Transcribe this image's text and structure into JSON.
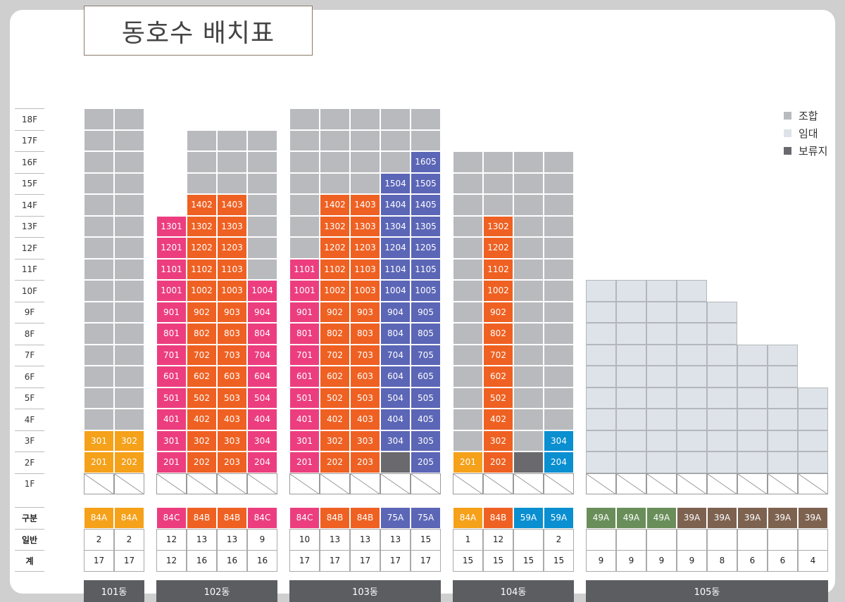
{
  "title": "동호수 배치표",
  "floors": [
    "18F",
    "17F",
    "16F",
    "15F",
    "14F",
    "13F",
    "12F",
    "11F",
    "10F",
    "9F",
    "8F",
    "7F",
    "6F",
    "5F",
    "4F",
    "3F",
    "2F",
    "1F"
  ],
  "legend": [
    {
      "label": "조합",
      "color": "#b9babe"
    },
    {
      "label": "임대",
      "color": "#dde3e8"
    },
    {
      "label": "보류지",
      "color": "#6a6a6e"
    }
  ],
  "row_labels": {
    "type": "구분",
    "general": "일반",
    "total": "계"
  },
  "buildings": [
    {
      "name": "101동",
      "columns": [
        {
          "floors": [
            "g",
            "g",
            "g",
            "g",
            "g",
            "g",
            "g",
            "g",
            "g",
            "g",
            "g",
            "g",
            "g",
            "g",
            "g",
            "y:301",
            "y:201",
            "e"
          ],
          "type": "84A",
          "general": "2",
          "total": "17"
        },
        {
          "floors": [
            "g",
            "g",
            "g",
            "g",
            "g",
            "g",
            "g",
            "g",
            "g",
            "g",
            "g",
            "g",
            "g",
            "g",
            "g",
            "y:302",
            "y:202",
            "e"
          ],
          "type": "84A",
          "general": "2",
          "total": "17"
        }
      ]
    },
    {
      "name": "102동",
      "columns": [
        {
          "floors": [
            "",
            "",
            "",
            "",
            "",
            "p:1301",
            "p:1201",
            "p:1101",
            "p:1001",
            "p:901",
            "p:801",
            "p:701",
            "p:601",
            "p:501",
            "p:401",
            "p:301",
            "p:201",
            "e"
          ],
          "type": "84C",
          "general": "12",
          "total": "12"
        },
        {
          "floors": [
            "",
            "g",
            "g",
            "g",
            "o:1402",
            "o:1302",
            "o:1202",
            "o:1102",
            "o:1002",
            "o:902",
            "o:802",
            "o:702",
            "o:602",
            "o:502",
            "o:402",
            "o:302",
            "o:202",
            "e"
          ],
          "type": "84B",
          "general": "13",
          "total": "16"
        },
        {
          "floors": [
            "",
            "g",
            "g",
            "g",
            "o:1403",
            "o:1303",
            "o:1203",
            "o:1103",
            "o:1003",
            "o:903",
            "o:803",
            "o:703",
            "o:603",
            "o:503",
            "o:403",
            "o:303",
            "o:203",
            "e"
          ],
          "type": "84B",
          "general": "13",
          "total": "16"
        },
        {
          "floors": [
            "",
            "g",
            "g",
            "g",
            "g",
            "g",
            "g",
            "g",
            "p:1004",
            "p:904",
            "p:804",
            "p:704",
            "p:604",
            "p:504",
            "p:404",
            "p:304",
            "p:204",
            "e"
          ],
          "type": "84C",
          "general": "9",
          "total": "16"
        }
      ]
    },
    {
      "name": "103동",
      "columns": [
        {
          "floors": [
            "g",
            "g",
            "g",
            "g",
            "g",
            "g",
            "g",
            "p:1101",
            "p:1001",
            "p:901",
            "p:801",
            "p:701",
            "p:601",
            "p:501",
            "p:401",
            "p:301",
            "p:201",
            "e"
          ],
          "type": "84C",
          "general": "10",
          "total": "17"
        },
        {
          "floors": [
            "g",
            "g",
            "g",
            "g",
            "o:1402",
            "o:1302",
            "o:1202",
            "o:1102",
            "o:1002",
            "o:902",
            "o:802",
            "o:702",
            "o:602",
            "o:502",
            "o:402",
            "o:302",
            "o:202",
            "e"
          ],
          "type": "84B",
          "general": "13",
          "total": "17"
        },
        {
          "floors": [
            "g",
            "g",
            "g",
            "g",
            "o:1403",
            "o:1303",
            "o:1203",
            "o:1103",
            "o:1003",
            "o:903",
            "o:803",
            "o:703",
            "o:603",
            "o:503",
            "o:403",
            "o:303",
            "o:203",
            "e"
          ],
          "type": "84B",
          "general": "13",
          "total": "17"
        },
        {
          "floors": [
            "g",
            "g",
            "g",
            "b:1504",
            "b:1404",
            "b:1304",
            "b:1204",
            "b:1104",
            "b:1004",
            "b:904",
            "b:804",
            "b:704",
            "b:604",
            "b:504",
            "b:404",
            "b:304",
            "d",
            "e"
          ],
          "type": "75A",
          "general": "13",
          "total": "17"
        },
        {
          "floors": [
            "g",
            "g",
            "b:1605",
            "b:1505",
            "b:1405",
            "b:1305",
            "b:1205",
            "b:1105",
            "b:1005",
            "b:905",
            "b:805",
            "b:705",
            "b:605",
            "b:505",
            "b:405",
            "b:305",
            "b:205",
            "e"
          ],
          "type": "75A",
          "general": "15",
          "total": "17"
        }
      ]
    },
    {
      "name": "104동",
      "columns": [
        {
          "floors": [
            "",
            "",
            "g",
            "g",
            "g",
            "g",
            "g",
            "g",
            "g",
            "g",
            "g",
            "g",
            "g",
            "g",
            "g",
            "g",
            "y:201",
            "e"
          ],
          "type": "84A",
          "general": "1",
          "total": "15"
        },
        {
          "floors": [
            "",
            "",
            "g",
            "g",
            "g",
            "o:1302",
            "o:1202",
            "o:1102",
            "o:1002",
            "o:902",
            "o:802",
            "o:702",
            "o:602",
            "o:502",
            "o:402",
            "o:302",
            "o:202",
            "e"
          ],
          "type": "84B",
          "general": "12",
          "total": "15"
        },
        {
          "floors": [
            "",
            "",
            "g",
            "g",
            "g",
            "g",
            "g",
            "g",
            "g",
            "g",
            "g",
            "g",
            "g",
            "g",
            "g",
            "g",
            "d",
            "e"
          ],
          "type": "59A",
          "general": "",
          "total": "15"
        },
        {
          "floors": [
            "",
            "",
            "g",
            "g",
            "g",
            "g",
            "g",
            "g",
            "g",
            "g",
            "g",
            "g",
            "g",
            "g",
            "g",
            "c:304",
            "c:204",
            "e"
          ],
          "type": "59A",
          "general": "2",
          "total": "15"
        }
      ]
    },
    {
      "name": "105동",
      "columns": [
        {
          "floors": [
            "",
            "",
            "",
            "",
            "",
            "",
            "",
            "",
            "l",
            "l",
            "l",
            "l",
            "l",
            "l",
            "l",
            "l",
            "l",
            "e"
          ],
          "type": "49A",
          "general": "",
          "total": "9"
        },
        {
          "floors": [
            "",
            "",
            "",
            "",
            "",
            "",
            "",
            "",
            "l",
            "l",
            "l",
            "l",
            "l",
            "l",
            "l",
            "l",
            "l",
            "e"
          ],
          "type": "49A",
          "general": "",
          "total": "9"
        },
        {
          "floors": [
            "",
            "",
            "",
            "",
            "",
            "",
            "",
            "",
            "l",
            "l",
            "l",
            "l",
            "l",
            "l",
            "l",
            "l",
            "l",
            "e"
          ],
          "type": "49A",
          "general": "",
          "total": "9"
        },
        {
          "floors": [
            "",
            "",
            "",
            "",
            "",
            "",
            "",
            "",
            "l",
            "l",
            "l",
            "l",
            "l",
            "l",
            "l",
            "l",
            "l",
            "e"
          ],
          "type": "39A",
          "general": "",
          "total": "9"
        },
        {
          "floors": [
            "",
            "",
            "",
            "",
            "",
            "",
            "",
            "",
            "",
            "l",
            "l",
            "l",
            "l",
            "l",
            "l",
            "l",
            "l",
            "e"
          ],
          "type": "39A",
          "general": "",
          "total": "8"
        },
        {
          "floors": [
            "",
            "",
            "",
            "",
            "",
            "",
            "",
            "",
            "",
            "",
            "",
            "l",
            "l",
            "l",
            "l",
            "l",
            "l",
            "e"
          ],
          "type": "39A",
          "general": "",
          "total": "6"
        },
        {
          "floors": [
            "",
            "",
            "",
            "",
            "",
            "",
            "",
            "",
            "",
            "",
            "",
            "l",
            "l",
            "l",
            "l",
            "l",
            "l",
            "e"
          ],
          "type": "39A",
          "general": "",
          "total": "6"
        },
        {
          "floors": [
            "",
            "",
            "",
            "",
            "",
            "",
            "",
            "",
            "",
            "",
            "",
            "",
            "",
            "l",
            "l",
            "l",
            "l",
            "e"
          ],
          "type": "39A",
          "general": "",
          "total": "4"
        }
      ]
    }
  ]
}
